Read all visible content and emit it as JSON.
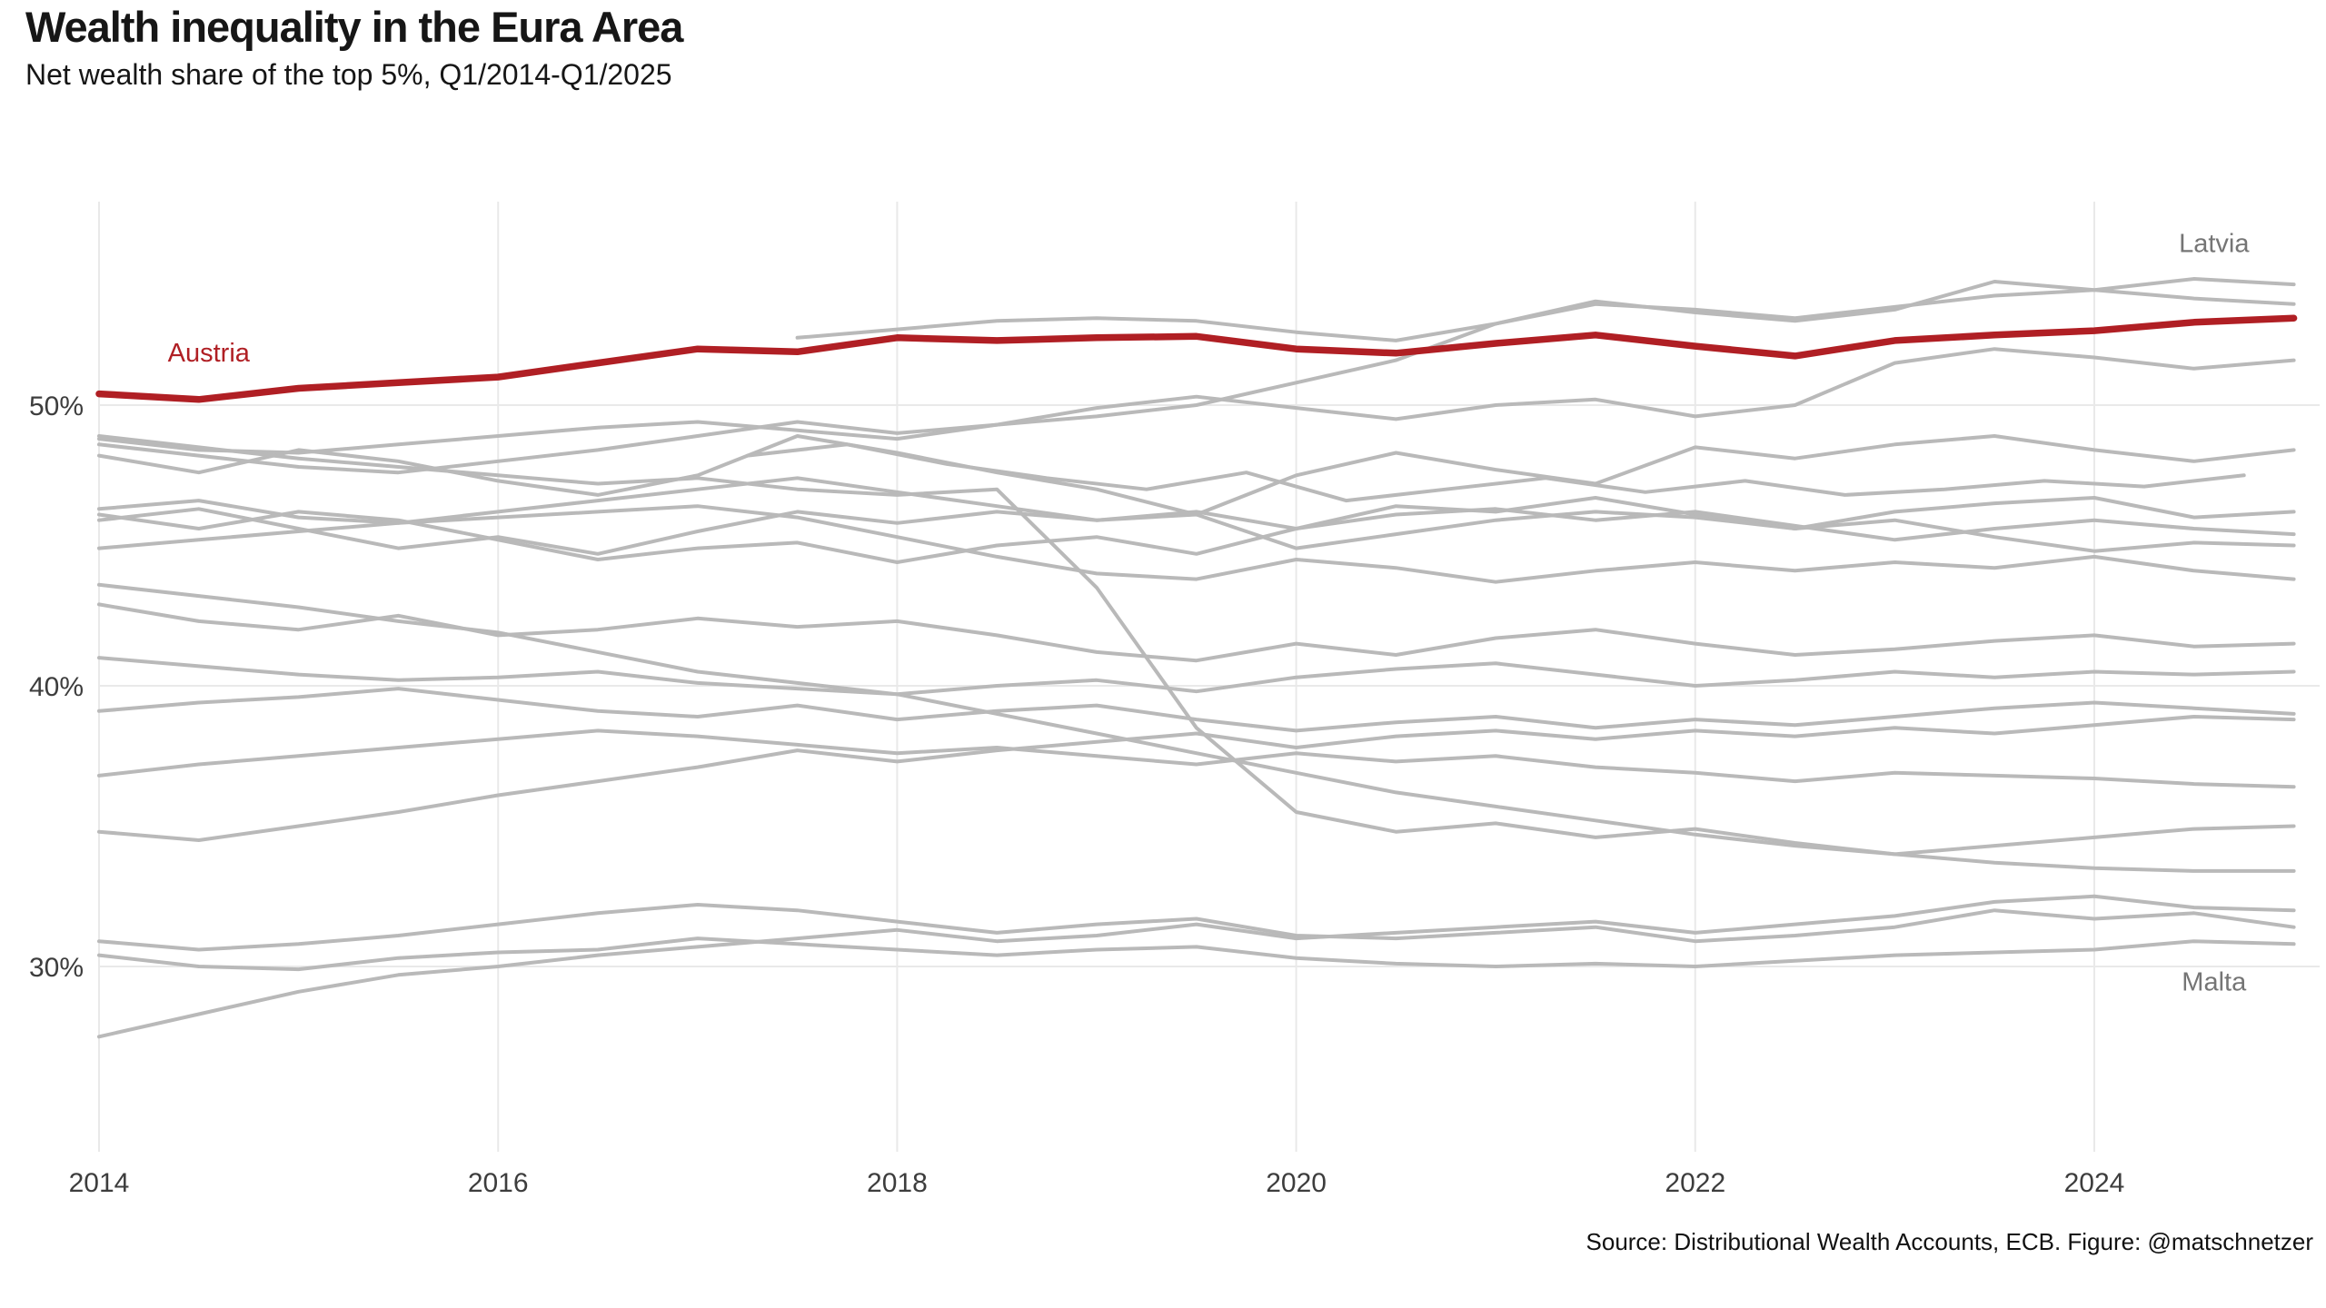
{
  "header": {
    "title": "Wealth inequality in the Eura Area",
    "subtitle": "Net wealth share of the top 5%, Q1/2014-Q1/2025"
  },
  "footer": {
    "source": "Source: Distributional Wealth Accounts, ECB. Figure: @matschnetzer"
  },
  "chart_data": {
    "type": "line",
    "title": "Wealth inequality in the Eura Area",
    "subtitle": "Net wealth share of the top 5%, Q1/2014-Q1/2025",
    "xlabel": "",
    "ylabel": "",
    "x_ticks": [
      2014,
      2016,
      2018,
      2020,
      2022,
      2024
    ],
    "y_ticks": [
      {
        "value": 50,
        "label": "50%"
      },
      {
        "value": 40,
        "label": "40%"
      },
      {
        "value": 30,
        "label": "30%"
      }
    ],
    "x_range": [
      2014,
      2025.15
    ],
    "y_range": [
      26.5,
      56.5
    ],
    "grid": true,
    "legend_position": "none",
    "colors": {
      "highlight": "#b01f24",
      "default": "#b9b9b9",
      "gridline": "#e9e9e9",
      "tick_text": "#3d3d3d",
      "annotation_gray": "#757575"
    },
    "annotations": [
      {
        "text": "Austria",
        "x": 2014.55,
        "y": 51.55,
        "color": "#b01f24"
      },
      {
        "text": "Latvia",
        "x": 2024.6,
        "y": 55.45,
        "color": "#757575"
      },
      {
        "text": "Malta",
        "x": 2024.6,
        "y": 29.15,
        "color": "#757575"
      }
    ],
    "series": [
      {
        "name": "",
        "color": "#b9b9b9",
        "width": 4,
        "start": 2014,
        "step": 0.5,
        "values": [
          48.8,
          48.4,
          48.3,
          48.6,
          48.9,
          49.2,
          49.4,
          49.1,
          48.8,
          49.3,
          49.9,
          50.3,
          49.9,
          49.5,
          50.0,
          50.2,
          49.6,
          50.0,
          51.5,
          52.0,
          51.7,
          51.3,
          51.6
        ]
      },
      {
        "name": "",
        "color": "#b9b9b9",
        "width": 4,
        "start": 2017.5,
        "step": 0.5,
        "values": [
          52.4,
          52.7,
          53.0,
          53.1,
          53.0,
          52.6,
          52.3,
          52.9,
          53.6,
          53.4,
          53.1,
          53.5,
          53.9,
          54.1,
          53.8,
          53.6
        ]
      },
      {
        "name": "",
        "color": "#b9b9b9",
        "width": 4,
        "start": 2014,
        "step": 0.5,
        "values": [
          48.2,
          47.6,
          48.4,
          48.0,
          47.3,
          46.8,
          47.5,
          48.9,
          48.3,
          47.6,
          47.0,
          46.1,
          47.5,
          48.3,
          47.7,
          47.2,
          48.5,
          48.1,
          48.6,
          48.9,
          48.4,
          48.0,
          48.4
        ]
      },
      {
        "name": "",
        "color": "#b9b9b9",
        "width": 4,
        "start": 2017.25,
        "step": 0.5,
        "values": [
          48.2,
          48.6,
          47.9,
          47.4,
          47.0,
          47.6,
          46.6,
          47.0,
          47.4,
          46.9,
          47.3,
          46.8,
          47.0,
          47.3,
          47.1,
          47.5
        ]
      },
      {
        "name": "",
        "color": "#b9b9b9",
        "width": 4,
        "start": 2014,
        "step": 0.5,
        "values": [
          46.3,
          46.6,
          46.0,
          45.8,
          46.2,
          46.6,
          47.0,
          47.4,
          46.9,
          46.4,
          45.9,
          46.2,
          45.6,
          46.4,
          46.2,
          46.7,
          46.1,
          45.6,
          46.2,
          46.5,
          46.7,
          46.0,
          46.2
        ]
      },
      {
        "name": "",
        "color": "#b9b9b9",
        "width": 4,
        "start": 2014,
        "step": 0.5,
        "values": [
          46.1,
          45.6,
          46.2,
          45.9,
          45.2,
          44.5,
          44.9,
          45.1,
          44.4,
          45.0,
          45.3,
          44.7,
          45.6,
          46.1,
          46.3,
          45.9,
          46.2,
          45.7,
          45.2,
          45.6,
          45.9,
          45.6,
          45.4
        ]
      },
      {
        "name": "",
        "color": "#b9b9b9",
        "width": 4,
        "start": 2014,
        "step": 0.5,
        "values": [
          45.9,
          46.3,
          45.6,
          44.9,
          45.3,
          44.7,
          45.5,
          46.2,
          45.8,
          46.2,
          45.9,
          46.1,
          44.9,
          45.4,
          45.9,
          46.2,
          46.0,
          45.6,
          45.9,
          45.3,
          44.8,
          45.1,
          45.0
        ]
      },
      {
        "name": "",
        "color": "#b9b9b9",
        "width": 4,
        "start": 2014,
        "step": 0.5,
        "values": [
          44.9,
          45.2,
          45.5,
          45.8,
          46.0,
          46.2,
          46.4,
          46.0,
          45.3,
          44.6,
          44.0,
          43.8,
          44.5,
          44.2,
          43.7,
          44.1,
          44.4,
          44.1,
          44.4,
          44.2,
          44.6,
          44.1,
          43.8
        ]
      },
      {
        "name": "",
        "color": "#b9b9b9",
        "width": 4,
        "start": 2014,
        "step": 0.5,
        "values": [
          43.6,
          43.2,
          42.8,
          42.3,
          41.9,
          41.2,
          40.5,
          40.1,
          39.7,
          39.0,
          38.3,
          37.6,
          36.9,
          36.2,
          35.7,
          35.2,
          34.7,
          34.3,
          34.0,
          33.7,
          33.5,
          33.4,
          33.4
        ]
      },
      {
        "name": "",
        "color": "#b9b9b9",
        "width": 4,
        "start": 2014,
        "step": 0.5,
        "values": [
          48.9,
          48.5,
          48.1,
          47.8,
          47.5,
          47.2,
          47.4,
          47.0,
          46.8,
          47.0,
          43.5,
          38.5,
          35.5,
          34.8,
          35.1,
          34.6,
          34.9,
          34.4,
          34.0,
          34.3,
          34.6,
          34.9,
          35.0
        ]
      },
      {
        "name": "",
        "color": "#b9b9b9",
        "width": 4,
        "start": 2014,
        "step": 0.5,
        "values": [
          42.9,
          42.3,
          42.0,
          42.5,
          41.8,
          42.0,
          42.4,
          42.1,
          42.3,
          41.8,
          41.2,
          40.9,
          41.5,
          41.1,
          41.7,
          42.0,
          41.5,
          41.1,
          41.3,
          41.6,
          41.8,
          41.4,
          41.5
        ]
      },
      {
        "name": "",
        "color": "#b9b9b9",
        "width": 4,
        "start": 2014,
        "step": 0.5,
        "values": [
          41.0,
          40.7,
          40.4,
          40.2,
          40.3,
          40.5,
          40.1,
          39.9,
          39.7,
          40.0,
          40.2,
          39.8,
          40.3,
          40.6,
          40.8,
          40.4,
          40.0,
          40.2,
          40.5,
          40.3,
          40.5,
          40.4,
          40.5
        ]
      },
      {
        "name": "",
        "color": "#b9b9b9",
        "width": 4,
        "start": 2014,
        "step": 0.5,
        "values": [
          39.1,
          39.4,
          39.6,
          39.9,
          39.5,
          39.1,
          38.9,
          39.3,
          38.8,
          39.1,
          39.3,
          38.8,
          38.4,
          38.7,
          38.9,
          38.5,
          38.8,
          38.6,
          38.9,
          39.2,
          39.4,
          39.2,
          39.0
        ]
      },
      {
        "name": "",
        "color": "#b9b9b9",
        "width": 4,
        "start": 2014,
        "step": 0.5,
        "values": [
          36.8,
          37.2,
          37.5,
          37.8,
          38.1,
          38.4,
          38.2,
          37.9,
          37.6,
          37.8,
          37.5,
          37.2,
          37.6,
          37.3,
          37.5,
          37.1,
          36.9,
          36.6,
          36.9,
          36.8,
          36.7,
          36.5,
          36.4
        ]
      },
      {
        "name": "",
        "color": "#b9b9b9",
        "width": 4,
        "start": 2014,
        "step": 0.5,
        "values": [
          34.8,
          34.5,
          35.0,
          35.5,
          36.1,
          36.6,
          37.1,
          37.7,
          37.3,
          37.7,
          38.0,
          38.3,
          37.8,
          38.2,
          38.4,
          38.1,
          38.4,
          38.2,
          38.5,
          38.3,
          38.6,
          38.9,
          38.8
        ]
      },
      {
        "name": "",
        "color": "#b9b9b9",
        "width": 4,
        "start": 2014,
        "step": 0.5,
        "values": [
          30.9,
          30.6,
          30.8,
          31.1,
          31.5,
          31.9,
          32.2,
          32.0,
          31.6,
          31.2,
          31.5,
          31.7,
          31.1,
          31.0,
          31.2,
          31.4,
          30.9,
          31.1,
          31.4,
          32.0,
          31.7,
          31.9,
          31.4
        ]
      },
      {
        "name": "",
        "color": "#b9b9b9",
        "width": 4,
        "start": 2014,
        "step": 0.5,
        "values": [
          27.5,
          28.3,
          29.1,
          29.7,
          30.0,
          30.4,
          30.7,
          31.0,
          31.3,
          30.9,
          31.1,
          31.5,
          31.0,
          31.2,
          31.4,
          31.6,
          31.2,
          31.5,
          31.8,
          32.3,
          32.5,
          32.1,
          32.0
        ]
      },
      {
        "name": "Latvia",
        "color": "#b9b9b9",
        "width": 4,
        "start": 2014,
        "step": 0.5,
        "values": [
          48.6,
          48.2,
          47.8,
          47.6,
          48.0,
          48.4,
          48.9,
          49.4,
          49.0,
          49.3,
          49.6,
          50.0,
          50.8,
          51.6,
          52.9,
          53.7,
          53.3,
          53.0,
          53.4,
          54.4,
          54.1,
          54.5,
          54.3
        ]
      },
      {
        "name": "Malta",
        "color": "#b9b9b9",
        "width": 4,
        "start": 2014,
        "step": 0.5,
        "values": [
          30.4,
          30.0,
          29.9,
          30.3,
          30.5,
          30.6,
          31.0,
          30.8,
          30.6,
          30.4,
          30.6,
          30.7,
          30.3,
          30.1,
          30.0,
          30.1,
          30.0,
          30.2,
          30.4,
          30.5,
          30.6,
          30.9,
          30.8
        ]
      },
      {
        "name": "Austria",
        "color": "#b01f24",
        "width": 7.5,
        "start": 2014,
        "step": 0.5,
        "values": [
          50.4,
          50.2,
          50.6,
          50.8,
          51.0,
          51.5,
          52.0,
          51.9,
          52.4,
          52.3,
          52.4,
          52.45,
          52.0,
          51.85,
          52.2,
          52.5,
          52.1,
          51.75,
          52.3,
          52.5,
          52.65,
          52.95,
          53.1
        ]
      }
    ]
  }
}
